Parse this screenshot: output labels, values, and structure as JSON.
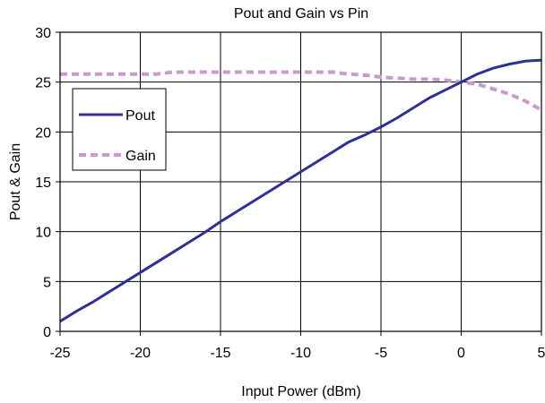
{
  "chart_data": {
    "type": "line",
    "title": "Pout and Gain vs Pin",
    "xlabel": "Input Power (dBm)",
    "ylabel": "Pout & Gain",
    "xlim": [
      -25,
      5
    ],
    "ylim": [
      0,
      30
    ],
    "x_ticks": [
      -25,
      -20,
      -15,
      -10,
      -5,
      0,
      5
    ],
    "y_ticks": [
      0,
      5,
      10,
      15,
      20,
      25,
      30
    ],
    "grid": true,
    "legend_position": "left",
    "x": [
      -25,
      -24,
      -23,
      -22,
      -21,
      -20,
      -19,
      -18,
      -17,
      -16,
      -15,
      -14,
      -13,
      -12,
      -11,
      -10,
      -9,
      -8,
      -7,
      -6,
      -5,
      -4,
      -3,
      -2,
      -1,
      0,
      1,
      2,
      3,
      4,
      5
    ],
    "series": [
      {
        "name": "Pout",
        "color": "#2E3192",
        "style": "solid",
        "values": [
          1.0,
          2.0,
          2.9,
          3.9,
          4.9,
          5.9,
          6.9,
          7.9,
          8.9,
          9.9,
          11.0,
          12.0,
          13.0,
          14.0,
          15.0,
          16.0,
          17.0,
          18.0,
          19.0,
          19.7,
          20.5,
          21.4,
          22.4,
          23.4,
          24.2,
          25.0,
          25.8,
          26.4,
          26.8,
          27.1,
          27.2
        ]
      },
      {
        "name": "Gain",
        "color": "#CC99CC",
        "style": "dashed",
        "values": [
          25.8,
          25.8,
          25.8,
          25.8,
          25.8,
          25.8,
          25.8,
          26.0,
          26.0,
          26.0,
          26.0,
          26.0,
          26.0,
          26.0,
          26.0,
          26.0,
          26.0,
          26.0,
          25.8,
          25.7,
          25.5,
          25.4,
          25.3,
          25.3,
          25.2,
          25.0,
          24.8,
          24.3,
          23.8,
          23.1,
          22.2
        ]
      }
    ]
  }
}
